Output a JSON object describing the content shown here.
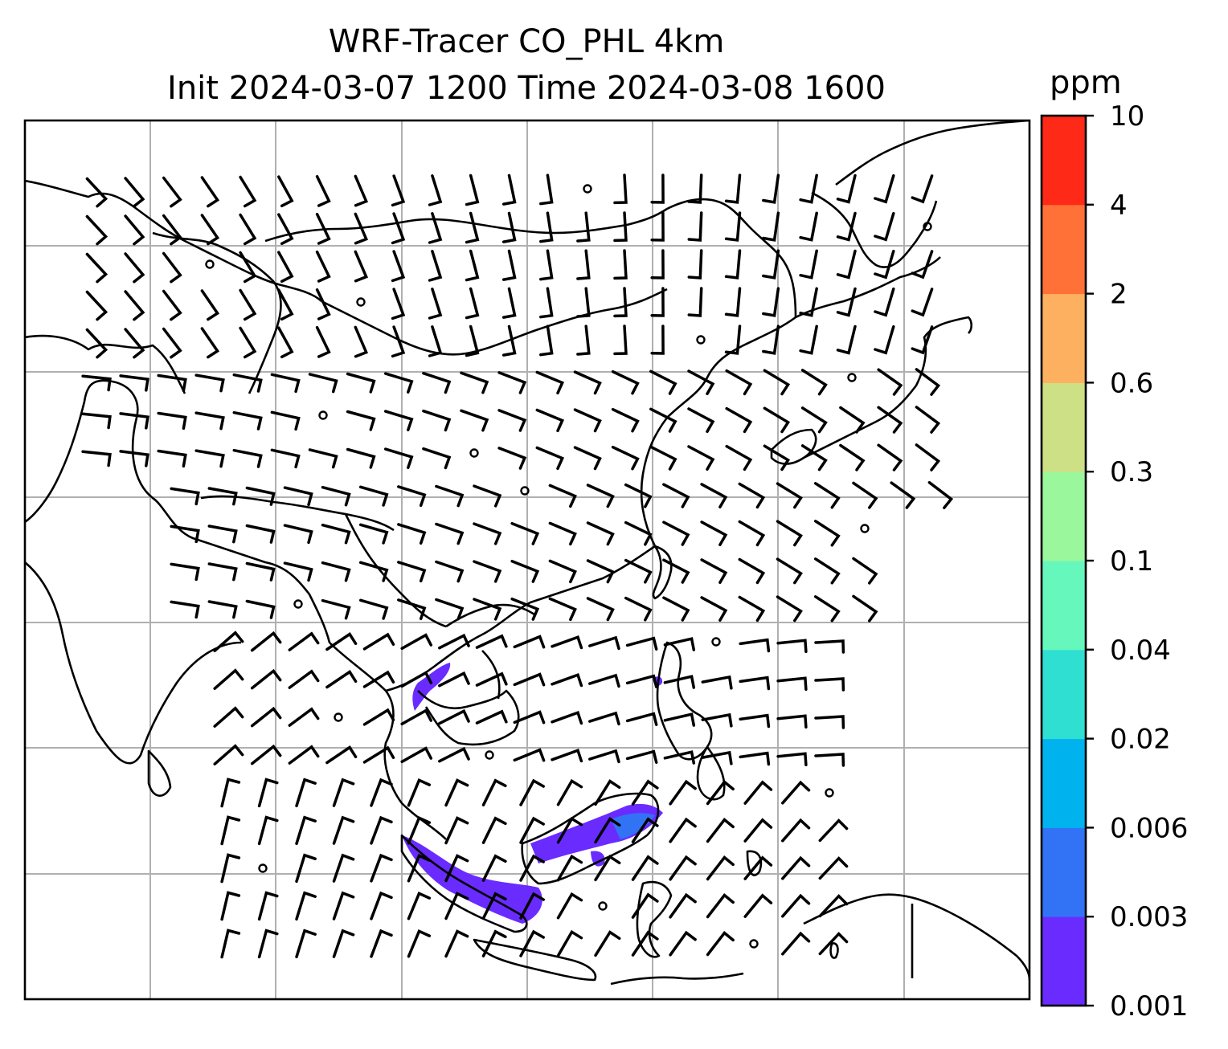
{
  "title": {
    "line1": "WRF-Tracer CO_PHL 4km",
    "line2": "Init 2024-03-07 1200 Time 2024-03-08 1600"
  },
  "colorbar": {
    "unit": "ppm",
    "levels": [
      "0.001",
      "0.003",
      "0.006",
      "0.02",
      "0.04",
      "0.1",
      "0.3",
      "0.6",
      "2",
      "4",
      "10"
    ],
    "colors": [
      "#6a2bff",
      "#3272f5",
      "#00b3ee",
      "#2fe0d2",
      "#66f7bc",
      "#9bf79b",
      "#cde085",
      "#fdb05f",
      "#ff7137",
      "#ff2918"
    ]
  },
  "map": {
    "coastline_color": "#000000",
    "grid_color": "#b0b0b0",
    "plume_color": "#6a2bff",
    "plume_edge_color": "#3272f5",
    "plume_max_level": "0.006"
  }
}
